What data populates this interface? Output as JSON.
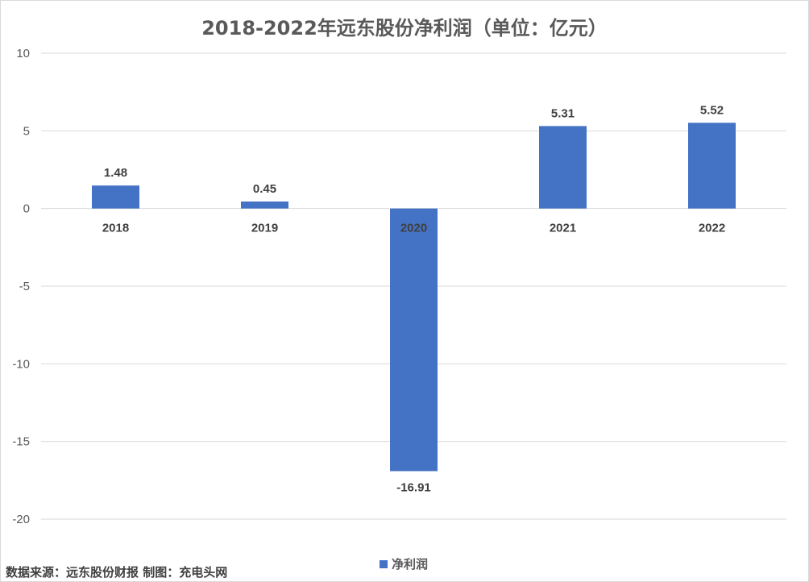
{
  "chart_data": {
    "type": "bar",
    "title": "2018-2022年远东股份净利润（单位：亿元）",
    "categories": [
      "2018",
      "2019",
      "2020",
      "2021",
      "2022"
    ],
    "series": [
      {
        "name": "净利润",
        "values": [
          1.48,
          0.45,
          -16.91,
          5.31,
          5.52
        ],
        "color": "#4472c4"
      }
    ],
    "data_labels": [
      "1.48",
      "0.45",
      "-16.91",
      "5.31",
      "5.52"
    ],
    "ylim": [
      -20,
      10
    ],
    "yticks": [
      10,
      5,
      0,
      -5,
      -10,
      -15,
      -20
    ],
    "grid": true,
    "legend_position": "bottom"
  },
  "footer": {
    "source": "数据来源：远东股份财报  制图：充电头网"
  }
}
